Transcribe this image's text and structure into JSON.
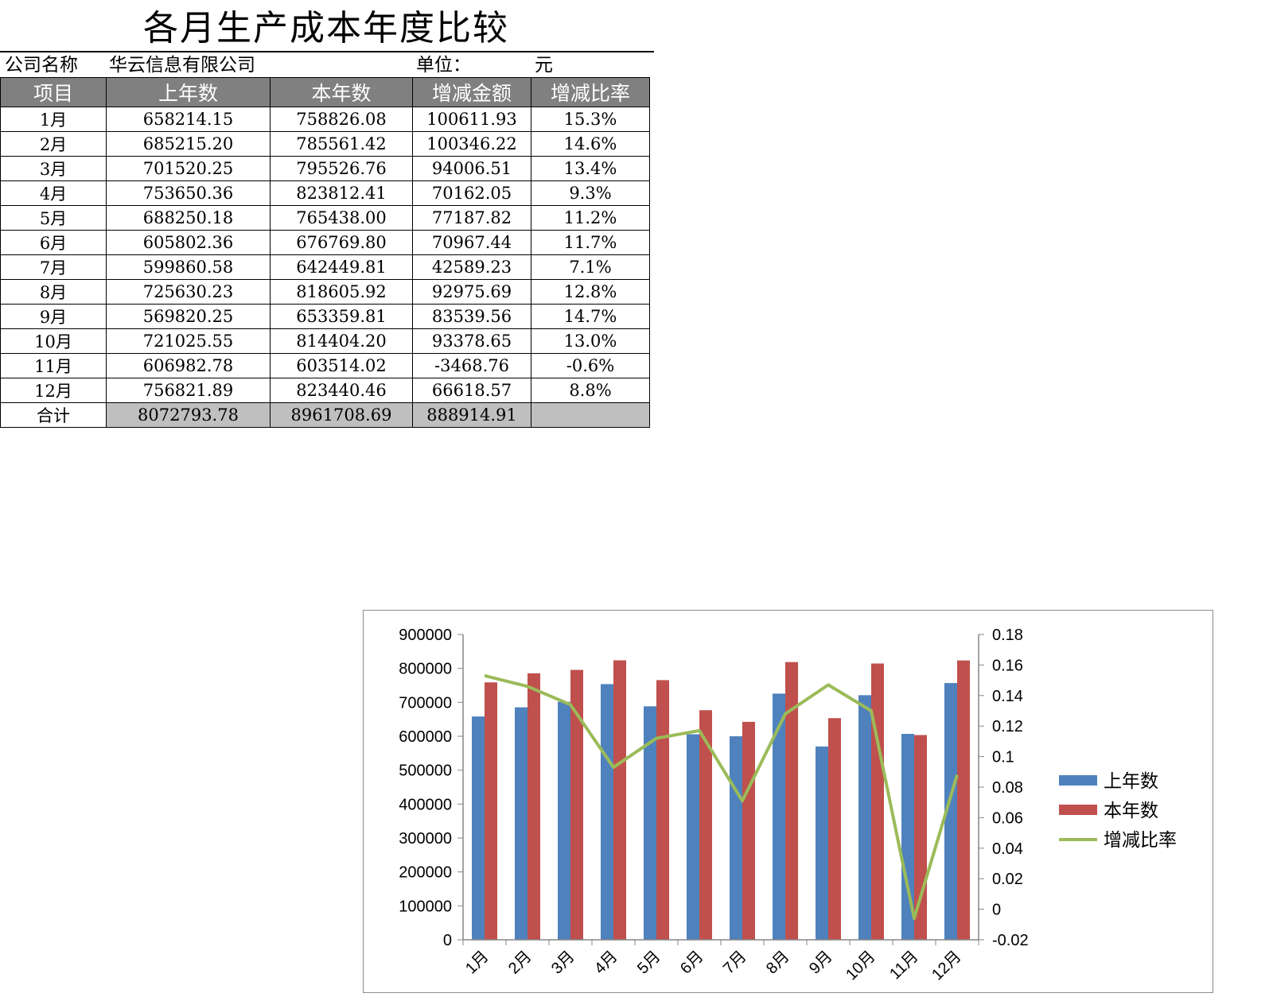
{
  "title": "各月生产成本年度比较",
  "company_label": "公司名称",
  "company_name": "华云信息有限公司",
  "unit_label": "单位：",
  "unit_value": "元",
  "table": {
    "headers": [
      "项目",
      "上年数",
      "本年数",
      "增减金额",
      "增减比率"
    ],
    "rows": [
      [
        "1月",
        "658214.15",
        "758826.08",
        "100611.93",
        "15.3%"
      ],
      [
        "2月",
        "685215.20",
        "785561.42",
        "100346.22",
        "14.6%"
      ],
      [
        "3月",
        "701520.25",
        "795526.76",
        "94006.51",
        "13.4%"
      ],
      [
        "4月",
        "753650.36",
        "823812.41",
        "70162.05",
        "9.3%"
      ],
      [
        "5月",
        "688250.18",
        "765438.00",
        "77187.82",
        "11.2%"
      ],
      [
        "6月",
        "605802.36",
        "676769.80",
        "70967.44",
        "11.7%"
      ],
      [
        "7月",
        "599860.58",
        "642449.81",
        "42589.23",
        "7.1%"
      ],
      [
        "8月",
        "725630.23",
        "818605.92",
        "92975.69",
        "12.8%"
      ],
      [
        "9月",
        "569820.25",
        "653359.81",
        "83539.56",
        "14.7%"
      ],
      [
        "10月",
        "721025.55",
        "814404.20",
        "93378.65",
        "13.0%"
      ],
      [
        "11月",
        "606982.78",
        "603514.02",
        "-3468.76",
        "-0.6%"
      ],
      [
        "12月",
        "756821.89",
        "823440.46",
        "66618.57",
        "8.8%"
      ]
    ],
    "total": [
      "合计",
      "8072793.78",
      "8961708.69",
      "888914.91",
      ""
    ]
  },
  "chart_data": {
    "type": "bar",
    "categories": [
      "1月",
      "2月",
      "3月",
      "4月",
      "5月",
      "6月",
      "7月",
      "8月",
      "9月",
      "10月",
      "11月",
      "12月"
    ],
    "series": [
      {
        "name": "上年数",
        "type": "bar",
        "axis": "left",
        "color": "#4f81bd",
        "values": [
          658214.15,
          685215.2,
          701520.25,
          753650.36,
          688250.18,
          605802.36,
          599860.58,
          725630.23,
          569820.25,
          721025.55,
          606982.78,
          756821.89
        ]
      },
      {
        "name": "本年数",
        "type": "bar",
        "axis": "left",
        "color": "#c0504d",
        "values": [
          758826.08,
          785561.42,
          795526.76,
          823812.41,
          765438.0,
          676769.8,
          642449.81,
          818605.92,
          653359.81,
          814404.2,
          603514.02,
          823440.46
        ]
      },
      {
        "name": "增减比率",
        "type": "line",
        "axis": "right",
        "color": "#9bbb59",
        "values": [
          0.153,
          0.146,
          0.134,
          0.093,
          0.112,
          0.117,
          0.071,
          0.128,
          0.147,
          0.13,
          -0.006,
          0.088
        ]
      }
    ],
    "ylim": [
      0,
      900000
    ],
    "y_ticks": [
      "0",
      "100000",
      "200000",
      "300000",
      "400000",
      "500000",
      "600000",
      "700000",
      "800000",
      "900000"
    ],
    "y2lim": [
      -0.02,
      0.18
    ],
    "y2_ticks": [
      "-0.02",
      "0",
      "0.02",
      "0.04",
      "0.06",
      "0.08",
      "0.1",
      "0.12",
      "0.14",
      "0.16",
      "0.18"
    ],
    "grid": false,
    "legend": "right"
  }
}
